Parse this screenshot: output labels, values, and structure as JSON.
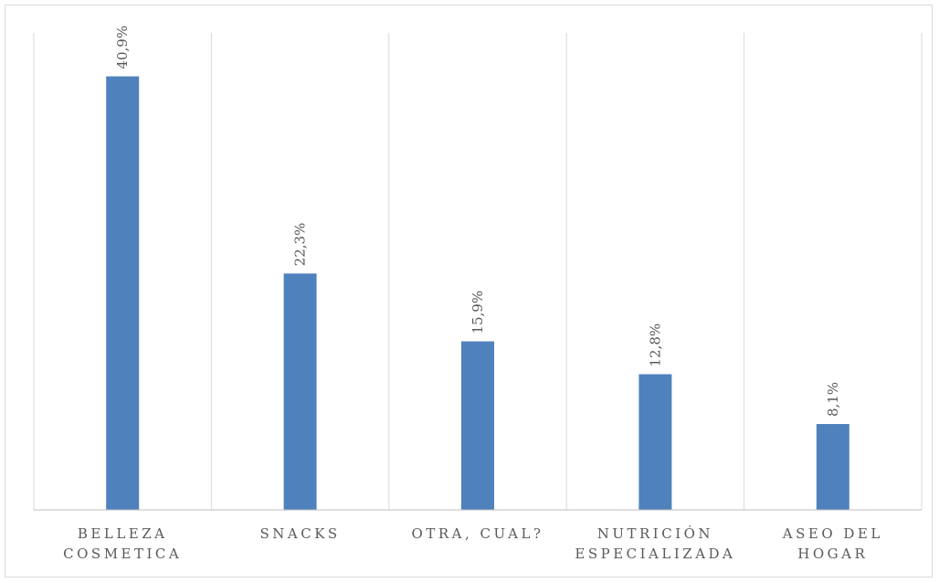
{
  "chart_data": {
    "type": "bar",
    "categories": [
      [
        "BELLEZA",
        "COSMETICA"
      ],
      [
        "SNACKS"
      ],
      [
        "OTRA, CUAL?"
      ],
      [
        "NUTRICIÓN",
        "ESPECIALIZADA"
      ],
      [
        "ASEO DEL",
        "HOGAR"
      ]
    ],
    "values": [
      40.9,
      22.3,
      15.9,
      12.8,
      8.1
    ],
    "data_labels": [
      "40,9%",
      "22,3%",
      "15,9%",
      "12,8%",
      "8,1%"
    ],
    "ylim": [
      0,
      45
    ],
    "grid": "vertical category separators",
    "legend": "none"
  },
  "colors": {
    "bar": "#4f81bd",
    "grid": "#d9d9d9",
    "axis": "#bfbfbf",
    "text": "#595959"
  }
}
